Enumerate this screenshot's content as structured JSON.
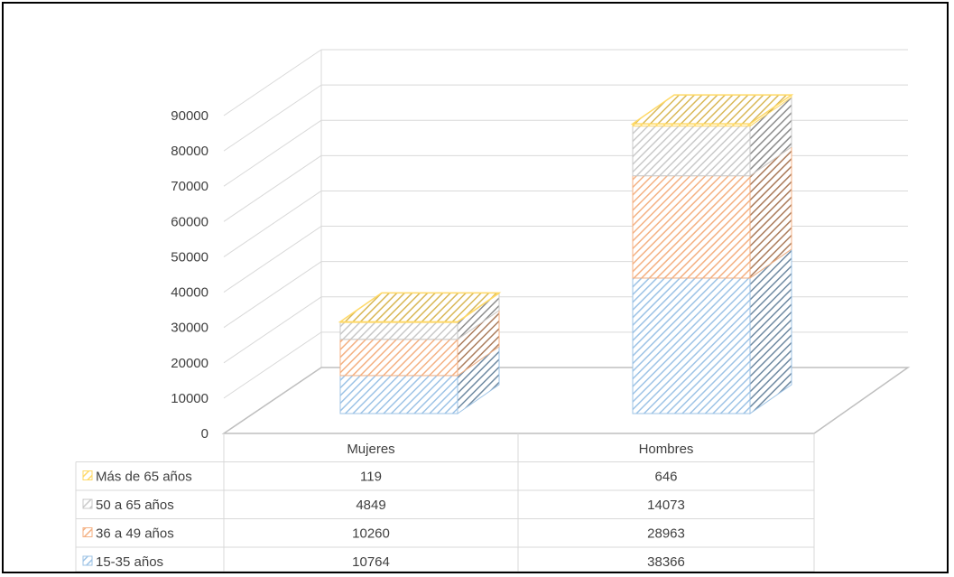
{
  "chart_data": {
    "type": "bar",
    "stacked": true,
    "three_d": true,
    "categories": [
      "Mujeres",
      "Hombres"
    ],
    "series": [
      {
        "name": "15-35 años",
        "values": [
          10764,
          38366
        ],
        "color": "#9DC3E6"
      },
      {
        "name": "36 a 49 años",
        "values": [
          10260,
          28963
        ],
        "color": "#F4B183"
      },
      {
        "name": "50 a 65 años",
        "values": [
          4849,
          14073
        ],
        "color": "#C9C9C9"
      },
      {
        "name": "Más de 65 años",
        "values": [
          119,
          646
        ],
        "color": "#FFD966"
      }
    ],
    "y_ticks": [
      0,
      10000,
      20000,
      30000,
      40000,
      50000,
      60000,
      70000,
      80000,
      90000
    ],
    "ylim": [
      0,
      90000
    ],
    "grid": true,
    "legend": "data-table",
    "data_table": true
  }
}
